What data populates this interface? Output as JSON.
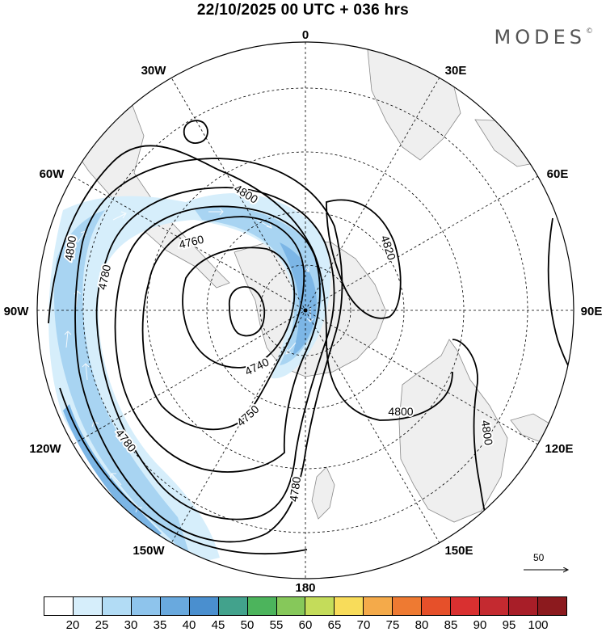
{
  "header": {
    "title": "22/10/2025  00 UTC  + 036 hrs",
    "brand": "MODES",
    "brand_mark": "©"
  },
  "longitude_labels": {
    "l0": "0",
    "l30e": "30E",
    "l60e": "60E",
    "l90e": "90E",
    "l120e": "120E",
    "l150e": "150E",
    "l180": "180",
    "l150w": "150W",
    "l120w": "120W",
    "l90w": "90W",
    "l60w": "60W",
    "l30w": "30W"
  },
  "contour_labels": {
    "c4800_nw": "4800",
    "c4820": "4820",
    "c4760": "4760",
    "c4780_w": "4780",
    "c4800_w": "4800",
    "c4740": "4740",
    "c4750": "4750",
    "c4780_sw": "4780",
    "c4800_s": "4800",
    "c4780_s": "4780",
    "c4800_e": "4800"
  },
  "vector_reference": {
    "value": "50"
  },
  "colorbar": {
    "colors": [
      "#ffffff",
      "#d6eefb",
      "#b2dcf5",
      "#8ec4ec",
      "#69a9de",
      "#4a8fcf",
      "#42a28c",
      "#4cb45c",
      "#86c85a",
      "#c4dc5a",
      "#f8dc5a",
      "#f4aa4a",
      "#ee7a32",
      "#e6502a",
      "#d93030",
      "#c42a30",
      "#a81e28",
      "#8c1a1e"
    ],
    "labels": [
      "20",
      "25",
      "30",
      "35",
      "40",
      "45",
      "50",
      "55",
      "60",
      "65",
      "70",
      "75",
      "80",
      "85",
      "90",
      "95",
      "100"
    ]
  },
  "colors": {
    "land": "#efefef",
    "jet_light": "#d6eefb",
    "jet_mid": "#a8d4f2",
    "jet_dark": "#7cb6e6"
  }
}
